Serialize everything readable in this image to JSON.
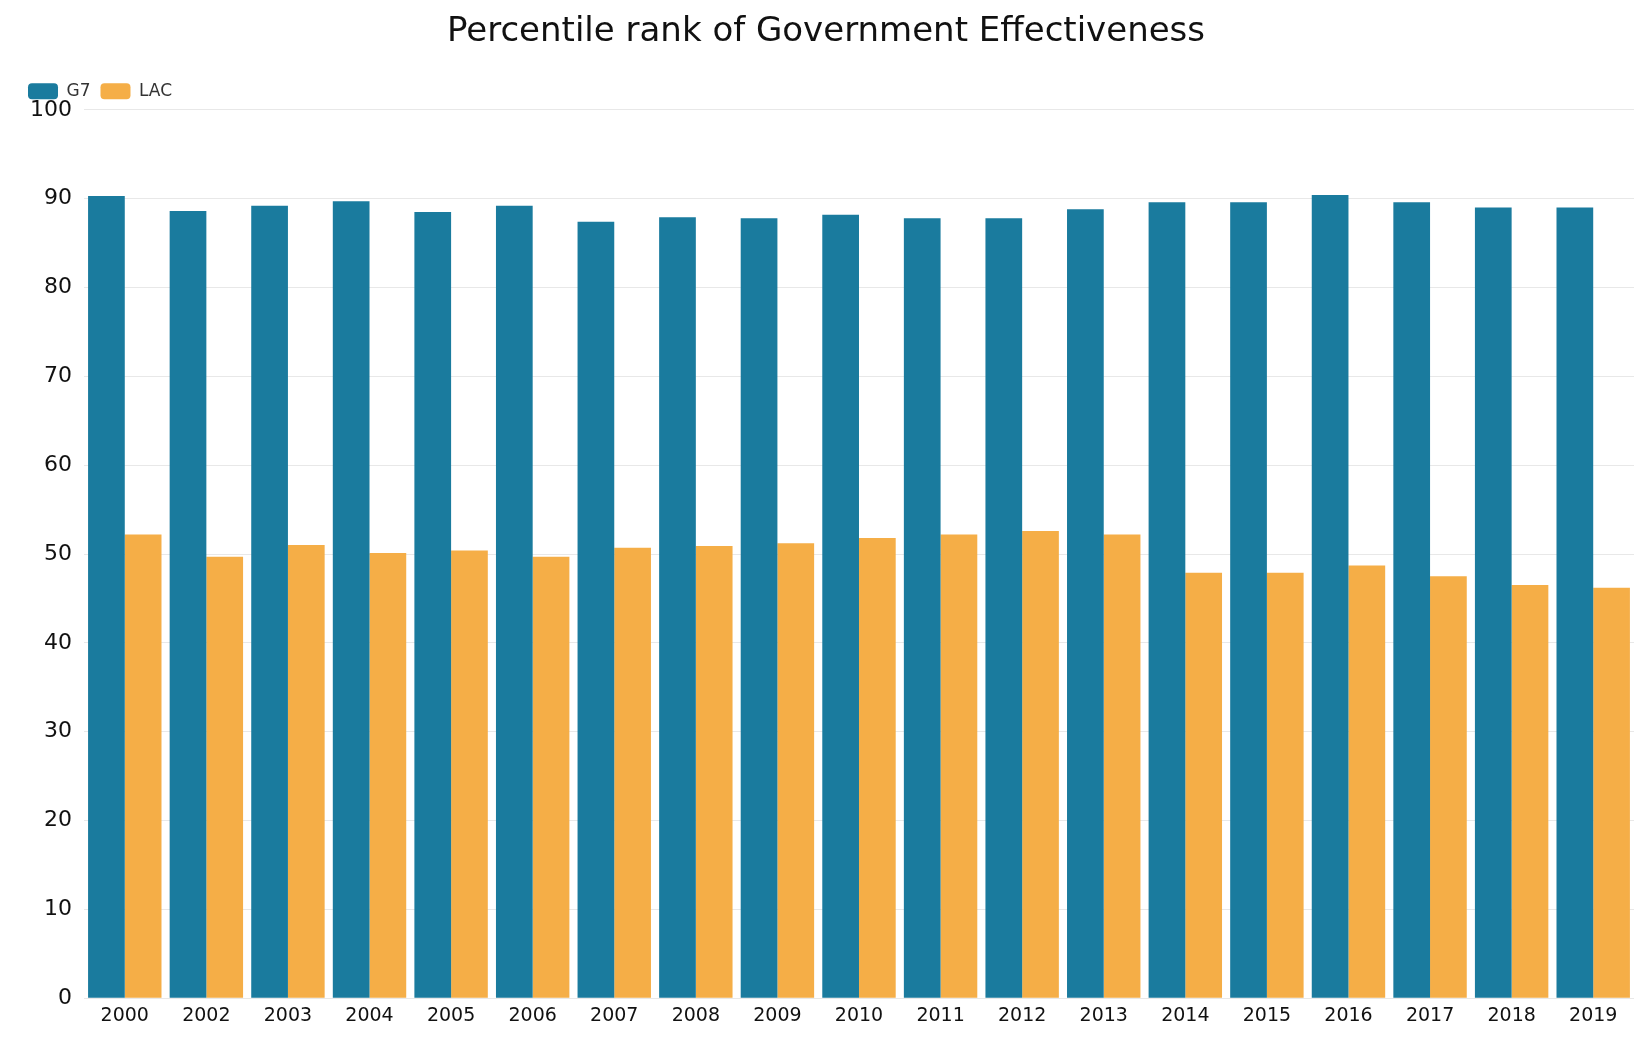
{
  "chart_data": {
    "type": "bar",
    "title": "Percentile rank of Government Effectiveness",
    "categories": [
      "2000",
      "2002",
      "2003",
      "2004",
      "2005",
      "2006",
      "2007",
      "2008",
      "2009",
      "2010",
      "2011",
      "2012",
      "2013",
      "2014",
      "2015",
      "2016",
      "2017",
      "2018",
      "2019"
    ],
    "series": [
      {
        "name": "G7",
        "color": "#1a7b9e",
        "values": [
          90.3,
          88.6,
          89.2,
          89.7,
          88.5,
          89.2,
          87.4,
          87.9,
          87.8,
          88.2,
          87.8,
          87.8,
          88.8,
          89.6,
          89.6,
          90.4,
          89.6,
          89.0,
          89.0
        ]
      },
      {
        "name": "LAC",
        "color": "#f5ae47",
        "values": [
          52.2,
          49.7,
          51.0,
          50.1,
          50.4,
          49.7,
          50.7,
          50.9,
          51.2,
          51.8,
          52.2,
          52.6,
          52.2,
          47.9,
          47.9,
          48.7,
          47.5,
          46.5,
          46.2
        ]
      }
    ],
    "ylim": [
      0,
      100
    ],
    "yticks": [
      0,
      10,
      20,
      30,
      40,
      50,
      60,
      70,
      80,
      90,
      100
    ],
    "grid": "y",
    "legend": "top left"
  }
}
